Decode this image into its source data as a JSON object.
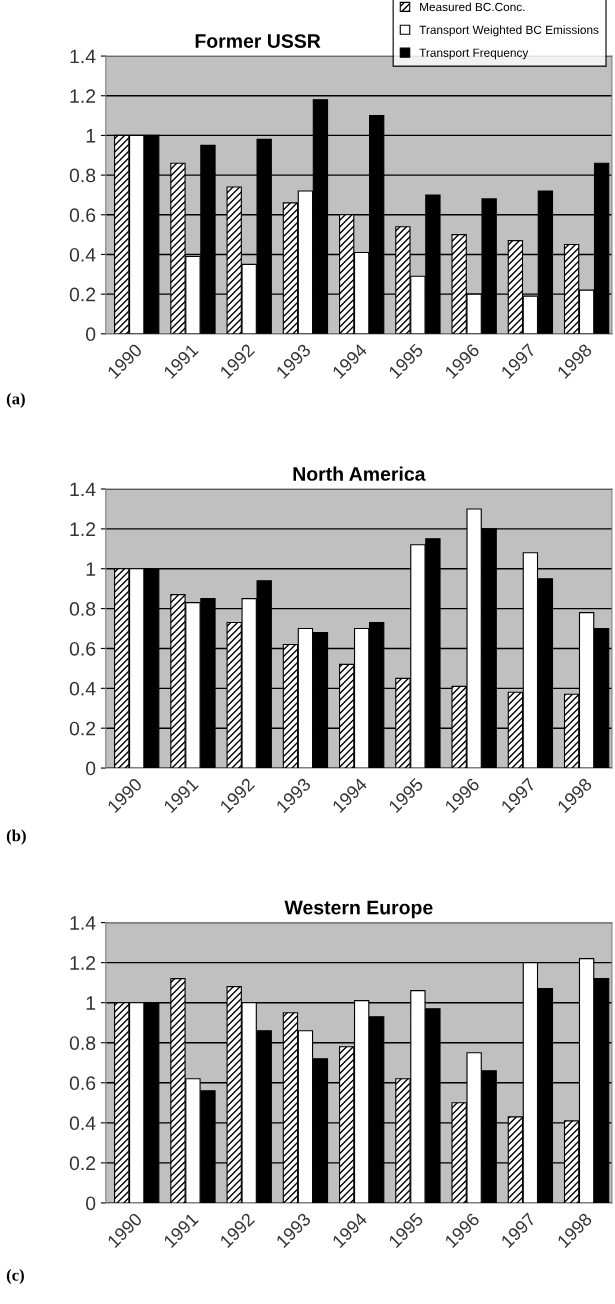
{
  "chart_data": [
    {
      "type": "bar",
      "title": "Former USSR",
      "categories": [
        "1990",
        "1991",
        "1992",
        "1993",
        "1994",
        "1995",
        "1996",
        "1997",
        "1998"
      ],
      "ylim": [
        0,
        1.4
      ],
      "yticks": [
        0,
        0.2,
        0.4,
        0.6,
        0.8,
        1,
        1.2,
        1.4
      ],
      "grid": "y",
      "legend": "top right",
      "annotations": [
        "(a)"
      ],
      "series": [
        {
          "name": "Measured BC.Conc.",
          "color": "#000000",
          "values": [
            1,
            0.86,
            0.74,
            0.66,
            0.6,
            0.54,
            0.5,
            0.47,
            0.45
          ]
        },
        {
          "name": "Transport Weighted BC Emissions",
          "color": "#ffffff",
          "values": [
            1,
            0.39,
            0.35,
            0.72,
            0.41,
            0.29,
            0.2,
            0.19,
            0.22
          ]
        },
        {
          "name": "Transport Frequency",
          "color": "#000000",
          "values": [
            1,
            0.95,
            0.98,
            1.18,
            1.1,
            0.7,
            0.68,
            0.72,
            0.86
          ]
        }
      ]
    },
    {
      "type": "bar",
      "title": "North America",
      "categories": [
        "1990",
        "1991",
        "1992",
        "1993",
        "1994",
        "1995",
        "1996",
        "1997",
        "1998"
      ],
      "ylim": [
        0,
        1.4
      ],
      "yticks": [
        0,
        0.2,
        0.4,
        0.6,
        0.8,
        1,
        1.2,
        1.4
      ],
      "grid": "y",
      "annotations": [
        "(b)"
      ],
      "series": [
        {
          "color": "#000000",
          "values": [
            1,
            0.87,
            0.73,
            0.62,
            0.52,
            0.45,
            0.41,
            0.38,
            0.37
          ]
        },
        {
          "color": "#ffffff",
          "values": [
            1,
            0.83,
            0.85,
            0.7,
            0.7,
            1.12,
            1.3,
            1.08,
            0.78
          ]
        },
        {
          "color": "#000000",
          "values": [
            1,
            0.85,
            0.94,
            0.68,
            0.73,
            1.15,
            1.2,
            0.95,
            0.7
          ]
        }
      ]
    },
    {
      "type": "bar",
      "title": "Western Europe",
      "categories": [
        "1990",
        "1991",
        "1992",
        "1993",
        "1994",
        "1995",
        "1996",
        "1997",
        "1998"
      ],
      "ylim": [
        0,
        1.4
      ],
      "yticks": [
        0,
        0.2,
        0.4,
        0.6,
        0.8,
        1,
        1.2,
        1.4
      ],
      "grid": "y",
      "annotations": [
        "(c)"
      ],
      "series": [
        {
          "color": "#000000",
          "values": [
            1,
            1.12,
            1.08,
            0.95,
            0.78,
            0.62,
            0.5,
            0.43,
            0.41
          ]
        },
        {
          "color": "#ffffff",
          "values": [
            1,
            0.62,
            1.0,
            0.86,
            1.01,
            1.06,
            0.75,
            1.2,
            1.22
          ]
        },
        {
          "color": "#000000",
          "values": [
            1,
            0.56,
            0.86,
            0.72,
            0.93,
            0.97,
            0.66,
            1.07,
            1.12
          ]
        }
      ]
    }
  ]
}
